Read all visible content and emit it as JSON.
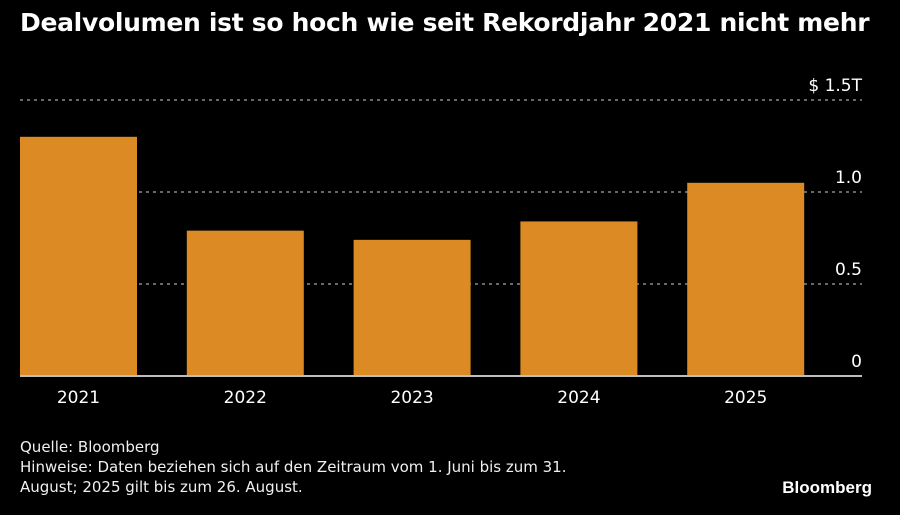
{
  "title": "Dealvolumen ist so hoch wie seit Rekordjahr 2021 nicht mehr",
  "chart_data": {
    "type": "bar",
    "title": "Dealvolumen ist so hoch wie seit Rekordjahr 2021 nicht mehr",
    "xlabel": "",
    "ylabel": "",
    "categories": [
      "2021",
      "2022",
      "2023",
      "2024",
      "2025"
    ],
    "values": [
      1.3,
      0.79,
      0.74,
      0.84,
      1.05
    ],
    "ylim": [
      0,
      1.5
    ],
    "yticks": [
      0,
      0.5,
      1.0,
      1.5
    ],
    "ytick_labels": [
      "0",
      "0.5",
      "1.0",
      "$ 1.5T"
    ],
    "grid": true,
    "axis_side": "right",
    "bar_color": "#dc8a24"
  },
  "footer": {
    "source": "Quelle: Bloomberg",
    "notes_line1": "Hinweise: Daten beziehen sich auf den Zeitraum vom 1. Juni bis zum 31.",
    "notes_line2": "August; 2025 gilt bis zum 26. August."
  },
  "logo": "Bloomberg"
}
